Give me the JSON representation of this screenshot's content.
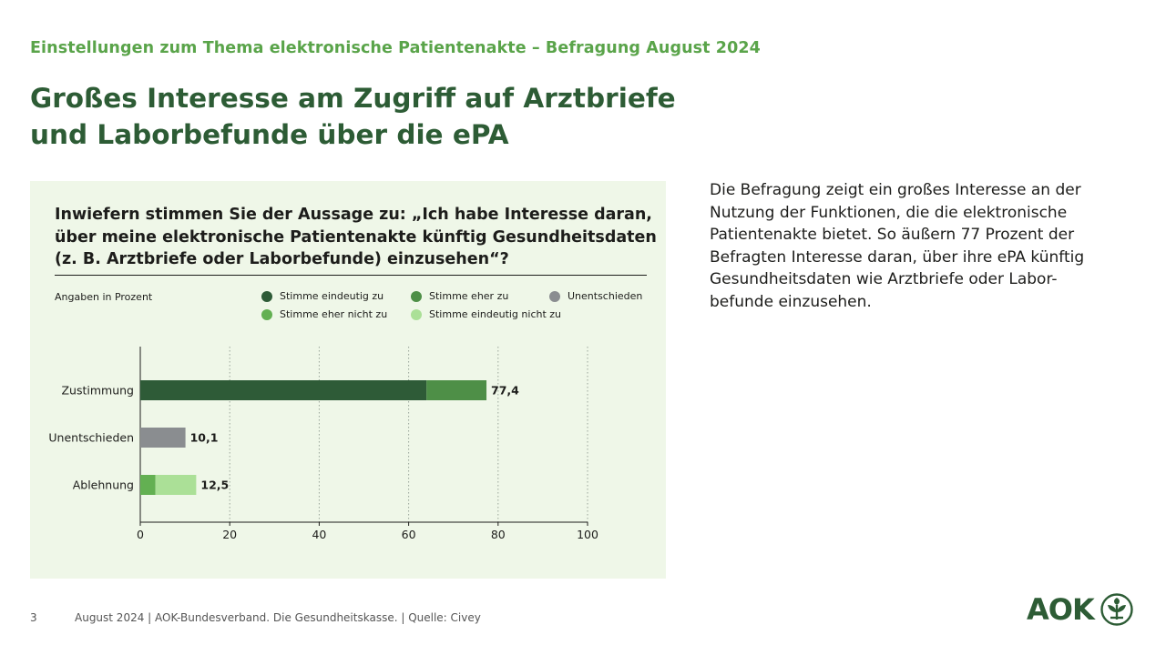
{
  "header": {
    "kicker": "Einstellungen zum Thema elektronische Patientenakte – Befragung August 2024",
    "headline_line1": "Großes Interesse am Zugriff auf Arztbriefe",
    "headline_line2": "und Laborbefunde über die ePA"
  },
  "chart_card": {
    "question_line1": "Inwiefern stimmen Sie der Aussage zu: „Ich habe Interesse daran,",
    "question_line2": "über meine elektronische Patientenakte künftig Gesundheitsdaten",
    "question_line3": "(z. B. Arztbriefe oder Laborbefunde) einzusehen“?",
    "unit_note": "Angaben in Prozent"
  },
  "chart_data": {
    "type": "bar",
    "orientation": "horizontal",
    "stacked": true,
    "categories": [
      "Zustimmung",
      "Unentschieden",
      "Ablehnung"
    ],
    "series": [
      {
        "name": "Stimme eindeutig zu",
        "color": "#2e5b37",
        "values": [
          64,
          0,
          0
        ]
      },
      {
        "name": "Stimme eher zu",
        "color": "#4e8f47",
        "values": [
          13.4,
          0,
          0
        ]
      },
      {
        "name": "Unentschieden",
        "color": "#8a8d90",
        "values": [
          0,
          10.1,
          0
        ]
      },
      {
        "name": "Stimme eher nicht zu",
        "color": "#63b052",
        "values": [
          0,
          0,
          3.4
        ]
      },
      {
        "name": "Stimme eindeutig nicht zu",
        "color": "#abe097",
        "values": [
          0,
          0,
          9.1
        ]
      }
    ],
    "totals": [
      "77,4",
      "10,1",
      "12,5"
    ],
    "xlim": [
      0,
      100
    ],
    "xticks": [
      0,
      20,
      40,
      60,
      80,
      100
    ],
    "grid": "vertical dotted",
    "legend_position": "top-right"
  },
  "body": {
    "text": "Die Befragung zeigt ein großes Interesse an der\nNutzung der Funktionen, die die elektronische\nPatientenakte bietet. So äußern 77 Prozent der\nBefragten Interesse daran, über ihre ePA künftig\nGesundheitsdaten wie Arztbriefe oder Labor-\nbefunde einzusehen."
  },
  "footer": {
    "page_number": "3",
    "text": "August 2024  |  AOK-Bundesverband. Die Gesundheitskasse.  |  Quelle: Civey"
  },
  "logo": {
    "text": "AOK",
    "icon": "aok-tree-icon",
    "color": "#2d5c35"
  }
}
